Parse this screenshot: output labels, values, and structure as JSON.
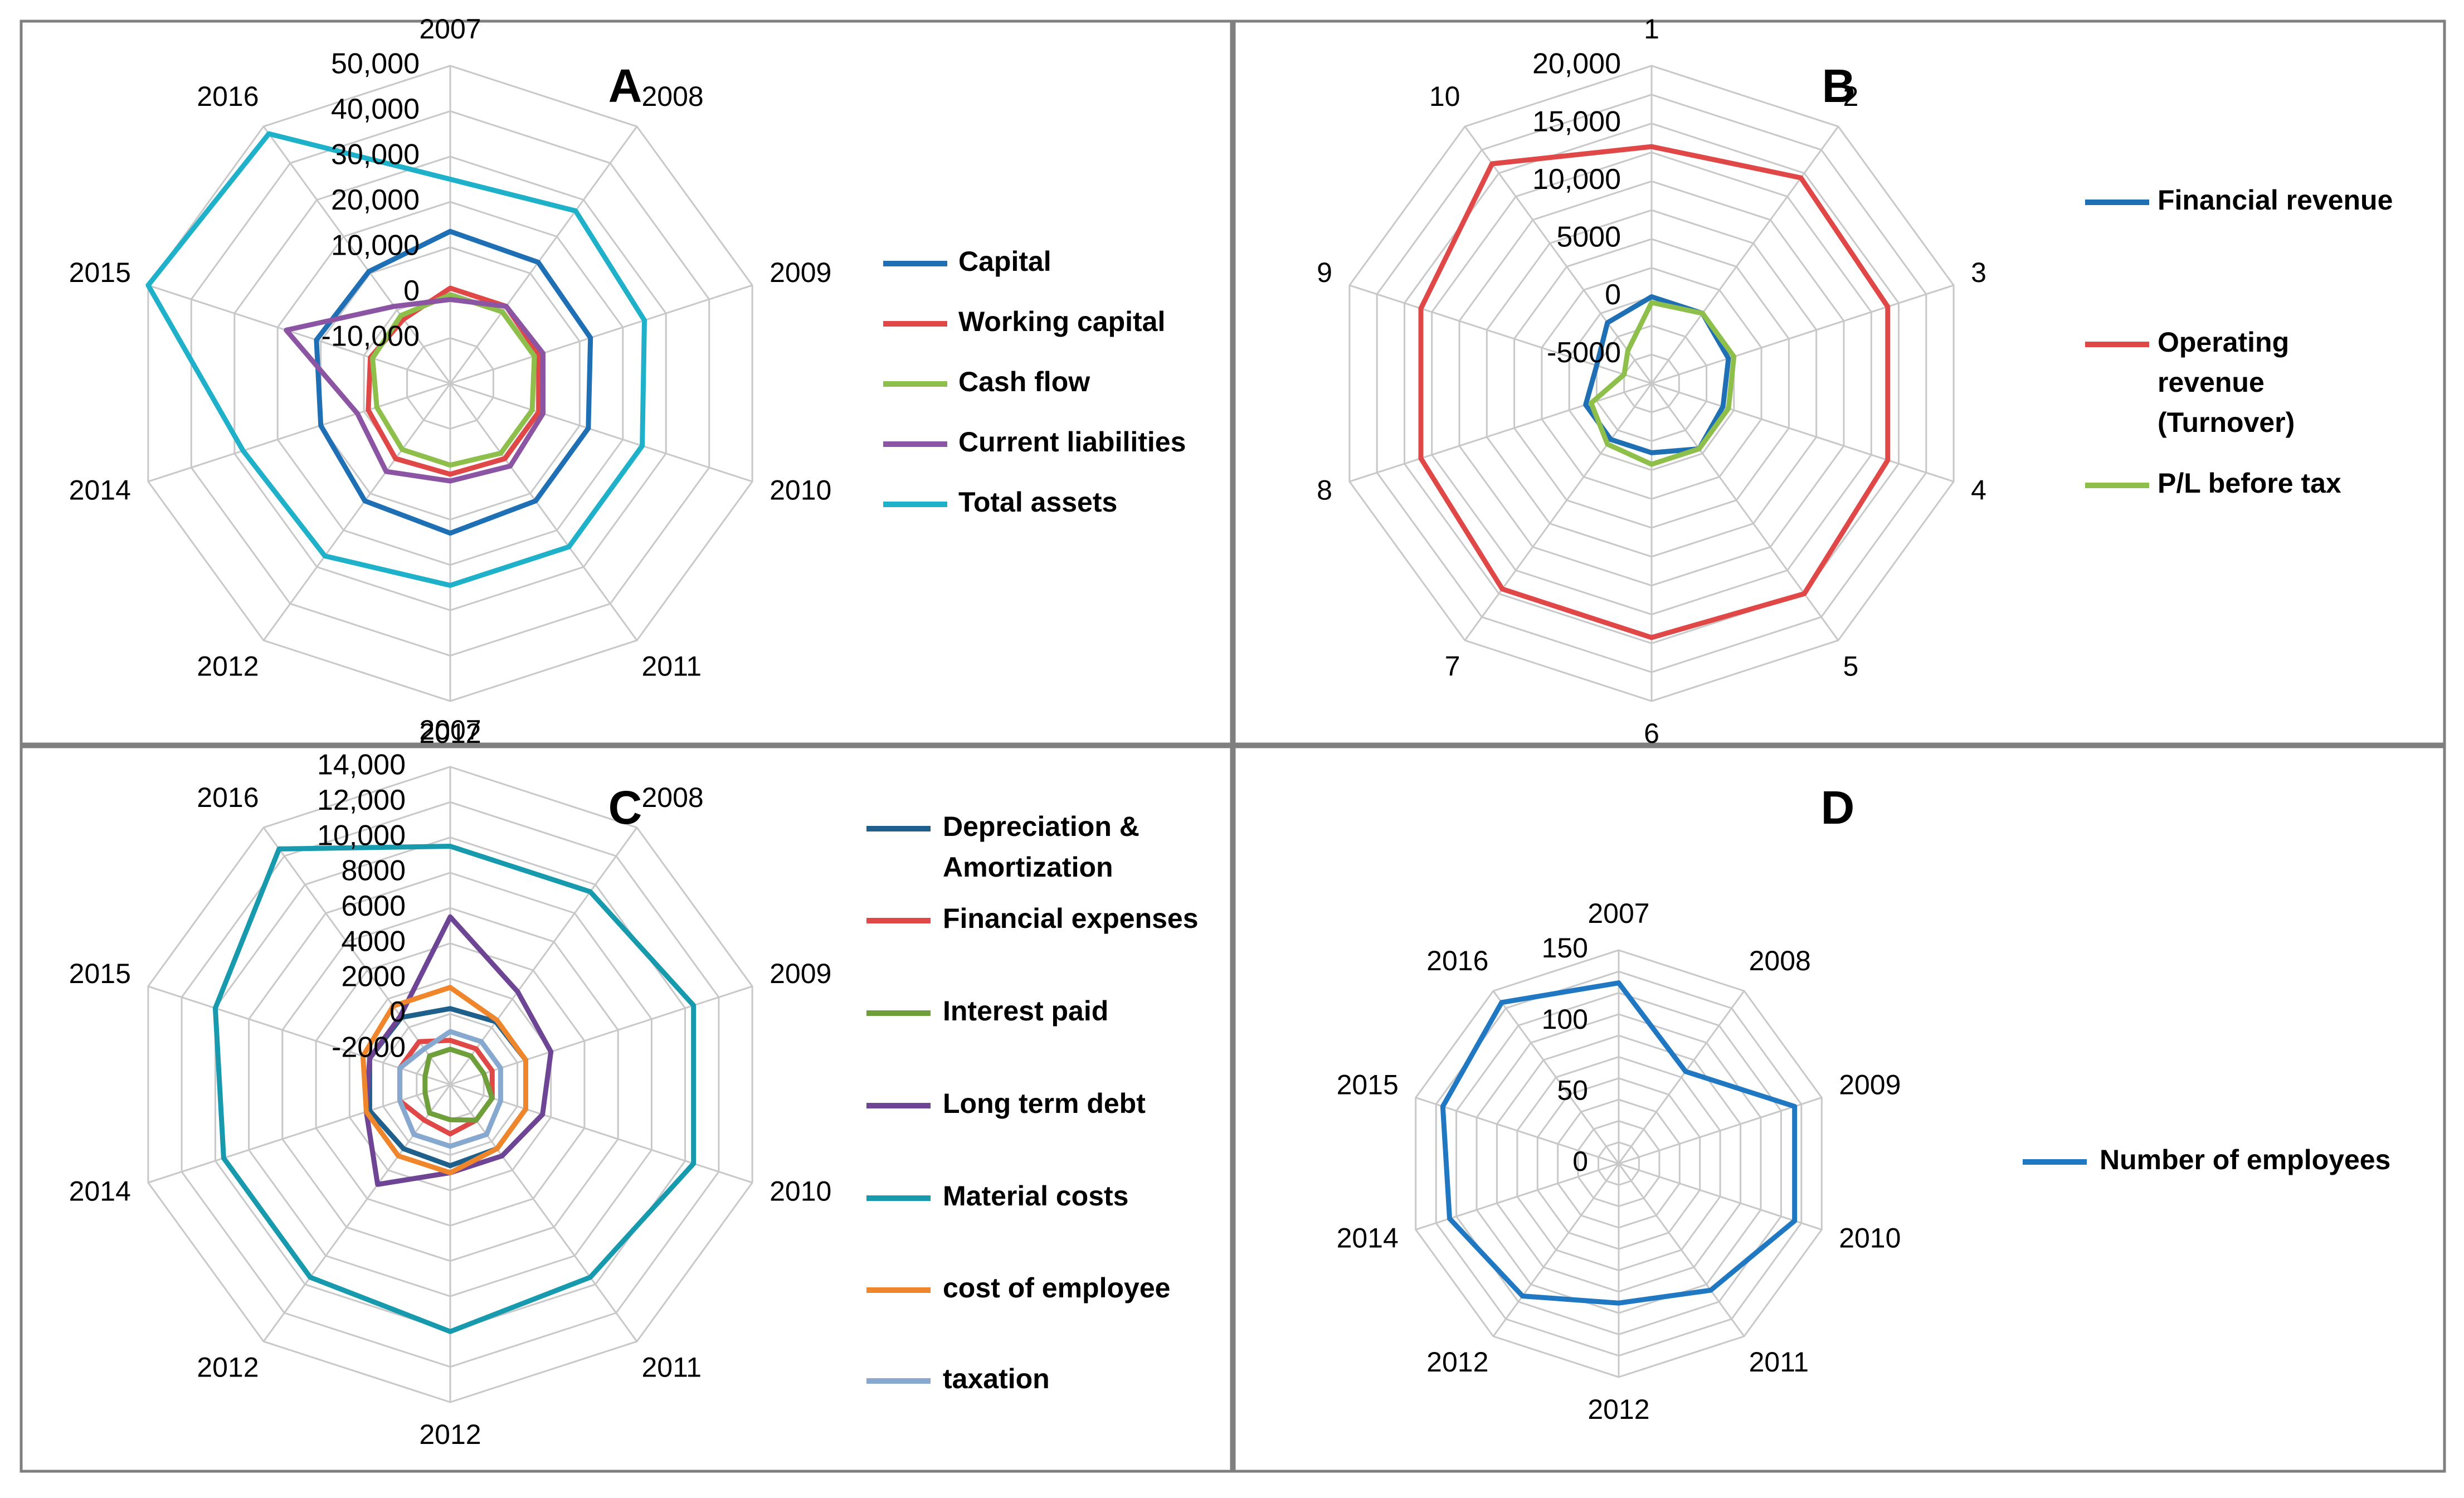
{
  "chart_data": [
    {
      "panel": "A",
      "type": "radar",
      "categories": [
        "2007",
        "2008",
        "2009",
        "2010",
        "2011",
        "2012",
        "2012",
        "2014",
        "2015",
        "2016"
      ],
      "axis_ticks": [
        "-10,000",
        "0",
        "10,000",
        "20,000",
        "30,000",
        "40,000",
        "50,000"
      ],
      "axis_min": -20000,
      "axis_max": 50000,
      "series": [
        {
          "name": "Capital",
          "color": "#1F6FB5",
          "values": [
            13500,
            13000,
            12500,
            12000,
            12000,
            13000,
            12000,
            10000,
            11000,
            10500
          ]
        },
        {
          "name": "Working capital",
          "color": "#E04848",
          "values": [
            1000,
            1000,
            500,
            500,
            500,
            0,
            500,
            -1000,
            -1500,
            -2500
          ]
        },
        {
          "name": "Cash flow",
          "color": "#8DBF4A",
          "values": [
            -500,
            -500,
            -500,
            -1000,
            -1000,
            -2000,
            -2000,
            -3000,
            -2000,
            -1500
          ]
        },
        {
          "name": "Current liabilities",
          "color": "#8B55A4",
          "values": [
            -1500,
            1000,
            1500,
            1500,
            2500,
            1500,
            4000,
            1500,
            18000,
            1000
          ]
        },
        {
          "name": "Total assets",
          "color": "#1EB1C9",
          "values": [
            25000,
            27000,
            25000,
            24500,
            24500,
            24500,
            27000,
            28000,
            50000,
            48000
          ]
        }
      ]
    },
    {
      "panel": "B",
      "type": "radar",
      "categories": [
        "1",
        "2",
        "3",
        "4",
        "5",
        "6",
        "7",
        "8",
        "9",
        "10"
      ],
      "axis_ticks": [
        "-5000",
        "0",
        "5000",
        "10,000",
        "15,000",
        "20,000"
      ],
      "axis_min": -7500,
      "axis_max": 20000,
      "series": [
        {
          "name": "Financial revenue",
          "color": "#1F6FB5",
          "values": [
            0,
            0,
            -500,
            -1000,
            -500,
            -1500,
            -1500,
            -1500,
            -2500,
            -1000
          ]
        },
        {
          "name": "Operating revenue (Turnover)",
          "color": "#E04848",
          "values": [
            13000,
            14500,
            14000,
            14000,
            15000,
            14500,
            14500,
            13500,
            13500,
            16000
          ]
        },
        {
          "name": "P/L before tax",
          "color": "#8DBF4A",
          "values": [
            -500,
            0,
            0,
            -500,
            -500,
            -500,
            -1000,
            -2000,
            -5000,
            -4000
          ]
        }
      ]
    },
    {
      "panel": "C",
      "type": "radar",
      "categories": [
        "2007",
        "2008",
        "2009",
        "2010",
        "2011",
        "2012",
        "2012",
        "2014",
        "2015",
        "2016"
      ],
      "axis_ticks": [
        "-2000",
        "0",
        "2000",
        "4000",
        "6000",
        "8000",
        "10,000",
        "12,000",
        "14,000"
      ],
      "axis_min": -4000,
      "axis_max": 14000,
      "series": [
        {
          "name": "Depreciation & Amortization",
          "color": "#1F5F8B",
          "values": [
            300,
            400,
            500,
            500,
            500,
            600,
            500,
            800,
            800,
            700
          ]
        },
        {
          "name": "Financial expenses",
          "color": "#E04848",
          "values": [
            -1500,
            -1500,
            -1500,
            -1500,
            -1500,
            -1200,
            -1500,
            -1000,
            -1000,
            -1000
          ]
        },
        {
          "name": "Interest paid",
          "color": "#6E9F3A",
          "values": [
            -2000,
            -2000,
            -2000,
            -1500,
            -1500,
            -2000,
            -2000,
            -2500,
            -2500,
            -2000
          ]
        },
        {
          "name": "Long term debt",
          "color": "#6E4594",
          "values": [
            5500,
            2500,
            2000,
            1500,
            1000,
            1000,
            3000,
            1000,
            800,
            800
          ]
        },
        {
          "name": "Material costs",
          "color": "#179AAE",
          "values": [
            9500,
            9500,
            10500,
            10500,
            9500,
            10000,
            9500,
            9500,
            10000,
            12500
          ]
        },
        {
          "name": "cost of employee",
          "color": "#F0862C",
          "values": [
            1500,
            500,
            500,
            500,
            500,
            1000,
            1000,
            1000,
            1200,
            1500
          ]
        },
        {
          "name": "taxation",
          "color": "#87A9CF",
          "values": [
            -1000,
            -1000,
            -1000,
            -1000,
            -500,
            -500,
            -500,
            -1000,
            -1000,
            -1500
          ]
        }
      ]
    },
    {
      "panel": "D",
      "type": "radar",
      "categories": [
        "2007",
        "2008",
        "2009",
        "2010",
        "2011",
        "2012",
        "2012",
        "2014",
        "2015",
        "2016"
      ],
      "axis_ticks": [
        "0",
        "50",
        "100",
        "150"
      ],
      "axis_min": 0,
      "axis_max": 150,
      "series": [
        {
          "name": "Number of employees",
          "color": "#1F78C1",
          "values": [
            127,
            80,
            130,
            130,
            110,
            98,
            115,
            125,
            130,
            140
          ]
        }
      ]
    }
  ]
}
